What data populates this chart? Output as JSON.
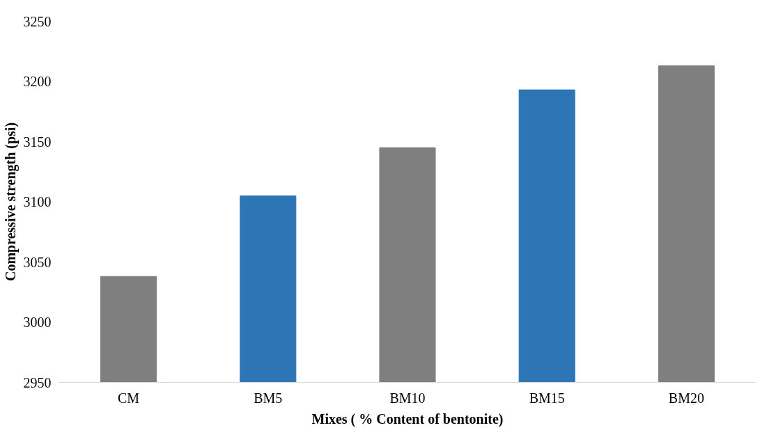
{
  "chart_data": {
    "type": "bar",
    "xlabel": "Mixes ( % Content of bentonite)",
    "ylabel": "Compressive strength (psi)",
    "categories": [
      "CM",
      "BM5",
      "BM10",
      "BM15",
      "BM20"
    ],
    "values": [
      3038,
      3105,
      3145,
      3193,
      3213
    ],
    "colors": [
      "#7f7f7f",
      "#2e75b6",
      "#7f7f7f",
      "#2e75b6",
      "#7f7f7f"
    ],
    "ylim": [
      2950,
      3250
    ],
    "yticks": [
      2950,
      3000,
      3050,
      3100,
      3150,
      3200,
      3250
    ],
    "grid": false
  }
}
